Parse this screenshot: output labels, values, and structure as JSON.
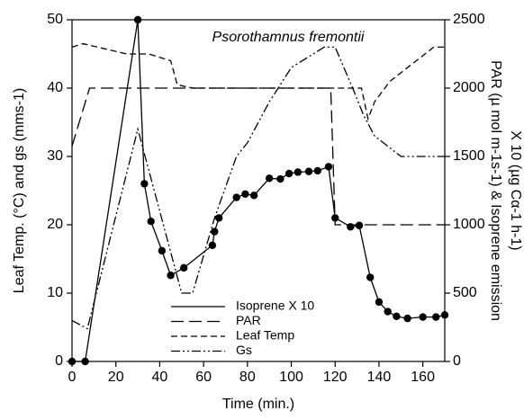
{
  "chart_data": {
    "type": "line",
    "annotation": "Psorothamnus fremontii",
    "xlabel": "Time (min.)",
    "ylabel": "Leaf Temp. (°C) and gs (mms-1)",
    "y2label": [
      "PAR (µ mol m-1s-1) & Isoprene emission",
      "X 10 (µg Cα-1 h-1)"
    ],
    "xlim": [
      0,
      170
    ],
    "xticks": [
      0,
      20,
      40,
      60,
      80,
      100,
      120,
      140,
      160
    ],
    "ylim": [
      0,
      50
    ],
    "yticks": [
      0,
      10,
      20,
      30,
      40,
      50
    ],
    "y2lim": [
      0,
      2500
    ],
    "y2ticks": [
      0,
      500,
      1000,
      1500,
      2000,
      2500
    ],
    "series": [
      {
        "name": "Isoprene X 10",
        "color": "#000000",
        "axis": "y2",
        "dash": "none",
        "markers": true,
        "x": [
          0,
          6,
          30,
          33,
          36,
          41,
          45,
          51,
          64,
          65,
          67,
          75,
          79,
          83,
          90,
          95,
          99,
          103,
          108,
          112,
          117,
          120,
          127,
          131,
          136,
          140,
          144,
          148,
          153,
          160,
          166,
          170
        ],
        "values": [
          0,
          0,
          2500,
          1300,
          1025,
          810,
          630,
          685,
          850,
          950,
          1050,
          1200,
          1225,
          1215,
          1340,
          1335,
          1375,
          1385,
          1390,
          1395,
          1425,
          1050,
          985,
          995,
          615,
          435,
          365,
          330,
          315,
          325,
          325,
          340
        ]
      },
      {
        "name": "PAR",
        "color": "#000000",
        "axis": "y2",
        "dash": "14 6",
        "markers": false,
        "x": [
          0,
          8,
          118,
          120,
          170
        ],
        "values": [
          1575,
          2000,
          2000,
          1000,
          1000
        ]
      },
      {
        "name": "Leaf Temp",
        "color": "#000000",
        "dash": "7 4",
        "markers": false,
        "x": [
          0,
          5,
          25,
          35,
          45,
          48,
          55,
          132,
          135,
          138,
          145,
          155,
          165,
          170
        ],
        "values": [
          46,
          46.5,
          45,
          45,
          44,
          40.5,
          40,
          40,
          35.5,
          38,
          41,
          43.5,
          46,
          46
        ]
      },
      {
        "name": "Gs",
        "color": "#000000",
        "dash": "10 3 2 3 2 3",
        "markers": false,
        "x": [
          0,
          7,
          30,
          50,
          55,
          65,
          75,
          80,
          90,
          100,
          115,
          120,
          128,
          133,
          138,
          150,
          170
        ],
        "values": [
          6,
          4.8,
          34,
          10,
          10,
          21,
          30,
          32,
          38,
          43,
          46,
          46,
          40,
          36,
          33,
          30,
          30
        ]
      }
    ]
  }
}
